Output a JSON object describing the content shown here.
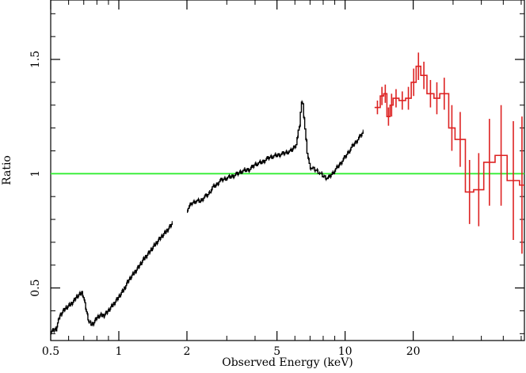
{
  "chart_data": {
    "type": "line",
    "title": "",
    "xlabel": "Observed Energy (keV)",
    "ylabel": "Ratio",
    "x_scale": "log",
    "xlim": [
      0.5,
      62
    ],
    "ylim": [
      0.27,
      1.76
    ],
    "x_ticks": [
      {
        "value": 0.5,
        "label": "0.5"
      },
      {
        "value": 1,
        "label": "1"
      },
      {
        "value": 2,
        "label": "2"
      },
      {
        "value": 5,
        "label": "5"
      },
      {
        "value": 10,
        "label": "10"
      },
      {
        "value": 20,
        "label": "20"
      }
    ],
    "y_ticks": [
      {
        "value": 0.5,
        "label": "0.5"
      },
      {
        "value": 1,
        "label": "1"
      },
      {
        "value": 1.5,
        "label": "1.5"
      }
    ],
    "reference_line": {
      "y": 1.0,
      "color": "#33ee33"
    },
    "series": [
      {
        "color": "#000000",
        "err": 0.008,
        "segments": [
          {
            "x": [
              0.5,
              0.53,
              0.55,
              0.58,
              0.6,
              0.63,
              0.65,
              0.67,
              0.69,
              0.7,
              0.72,
              0.74,
              0.76,
              0.78,
              0.8,
              0.83,
              0.86,
              0.9,
              0.95,
              1.0,
              1.05,
              1.1,
              1.2,
              1.3,
              1.4,
              1.5,
              1.6,
              1.72
            ],
            "y": [
              0.31,
              0.32,
              0.38,
              0.41,
              0.42,
              0.44,
              0.46,
              0.47,
              0.48,
              0.46,
              0.4,
              0.35,
              0.34,
              0.35,
              0.37,
              0.38,
              0.38,
              0.4,
              0.43,
              0.46,
              0.49,
              0.53,
              0.58,
              0.63,
              0.67,
              0.71,
              0.74,
              0.78
            ]
          },
          {
            "x": [
              2.0,
              2.1,
              2.2,
              2.3,
              2.4,
              2.5,
              2.6,
              2.7,
              2.8,
              3.0,
              3.2,
              3.5,
              3.8,
              4.0,
              4.3,
              4.6,
              5.0,
              5.4,
              5.8,
              6.1,
              6.3,
              6.4,
              6.5,
              6.6,
              6.8,
              7.0,
              7.3,
              7.6,
              8.0,
              8.4,
              8.8,
              9.3,
              9.8,
              10.3,
              10.8,
              11.4,
              12.0
            ],
            "y": [
              0.84,
              0.87,
              0.88,
              0.88,
              0.9,
              0.91,
              0.94,
              0.95,
              0.97,
              0.98,
              0.99,
              1.01,
              1.02,
              1.04,
              1.05,
              1.07,
              1.08,
              1.09,
              1.1,
              1.13,
              1.21,
              1.29,
              1.33,
              1.24,
              1.1,
              1.03,
              1.02,
              1.01,
              0.99,
              0.98,
              1.0,
              1.03,
              1.06,
              1.09,
              1.12,
              1.15,
              1.18
            ]
          }
        ]
      },
      {
        "color": "#dd2222",
        "steps": [
          {
            "x0": 13.5,
            "x1": 14.3,
            "y": 1.29,
            "err": 0.03
          },
          {
            "x0": 14.3,
            "x1": 14.8,
            "y": 1.34,
            "err": 0.04
          },
          {
            "x0": 14.8,
            "x1": 15.3,
            "y": 1.35,
            "err": 0.04
          },
          {
            "x0": 15.3,
            "x1": 15.8,
            "y": 1.25,
            "err": 0.04
          },
          {
            "x0": 15.8,
            "x1": 16.3,
            "y": 1.3,
            "err": 0.05
          },
          {
            "x0": 16.3,
            "x1": 17.3,
            "y": 1.33,
            "err": 0.04
          },
          {
            "x0": 17.3,
            "x1": 18.5,
            "y": 1.32,
            "err": 0.04
          },
          {
            "x0": 18.5,
            "x1": 19.6,
            "y": 1.33,
            "err": 0.05
          },
          {
            "x0": 19.6,
            "x1": 20.6,
            "y": 1.4,
            "err": 0.06
          },
          {
            "x0": 20.6,
            "x1": 21.6,
            "y": 1.47,
            "err": 0.06
          },
          {
            "x0": 21.6,
            "x1": 23.0,
            "y": 1.43,
            "err": 0.06
          },
          {
            "x0": 23.0,
            "x1": 24.7,
            "y": 1.35,
            "err": 0.06
          },
          {
            "x0": 24.7,
            "x1": 26.2,
            "y": 1.33,
            "err": 0.07
          },
          {
            "x0": 26.2,
            "x1": 28.7,
            "y": 1.35,
            "err": 0.07
          },
          {
            "x0": 28.7,
            "x1": 30.6,
            "y": 1.2,
            "err": 0.1
          },
          {
            "x0": 30.6,
            "x1": 34.0,
            "y": 1.15,
            "err": 0.12
          },
          {
            "x0": 34.0,
            "x1": 37.0,
            "y": 0.92,
            "err": 0.14
          },
          {
            "x0": 37.0,
            "x1": 41.0,
            "y": 0.93,
            "err": 0.16
          },
          {
            "x0": 41.0,
            "x1": 46.0,
            "y": 1.05,
            "err": 0.19
          },
          {
            "x0": 46.0,
            "x1": 52.0,
            "y": 1.08,
            "err": 0.22
          },
          {
            "x0": 52.0,
            "x1": 59.0,
            "y": 0.97,
            "err": 0.26
          },
          {
            "x0": 59.0,
            "x1": 62.0,
            "y": 0.95,
            "err": 0.3
          }
        ]
      }
    ]
  }
}
